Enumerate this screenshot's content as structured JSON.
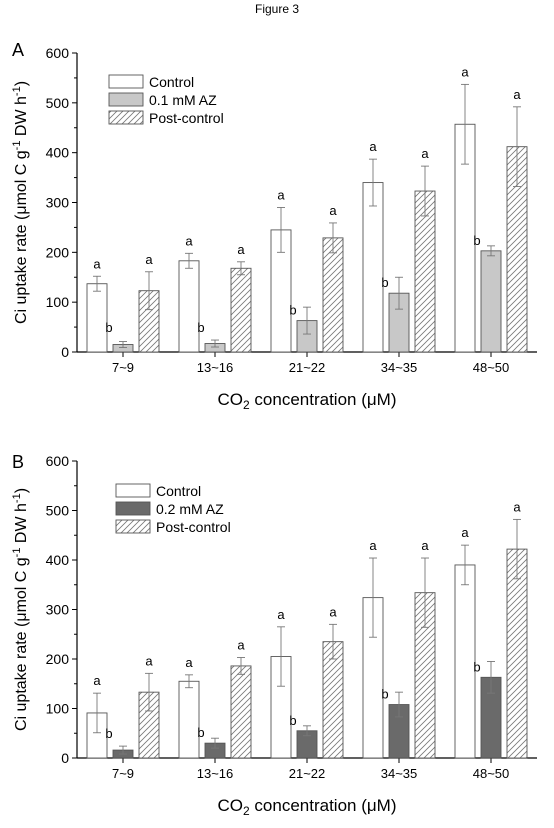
{
  "figure_title": "Figure 3",
  "chart_data": [
    {
      "type": "bar",
      "panel_label": "A",
      "categories": [
        "7~9",
        "13~16",
        "21~22",
        "34~35",
        "48~50"
      ],
      "xlabel_parts": [
        "CO",
        "2",
        " concentration (",
        "μ",
        "M)"
      ],
      "ylabel_parts": [
        "Ci uptake rate (",
        "μ",
        "mol C g",
        "-1",
        " DW h",
        "-1",
        ")"
      ],
      "ylim": [
        0,
        600
      ],
      "yticks": [
        "0",
        "100",
        "200",
        "300",
        "400",
        "500",
        "600"
      ],
      "legend_position": "top-left",
      "series": [
        {
          "name": "Control",
          "values": [
            137,
            183,
            245,
            340,
            457
          ],
          "errors": [
            15,
            15,
            45,
            47,
            80
          ],
          "letters": [
            "a",
            "a",
            "a",
            "a",
            "a"
          ],
          "fill": "#ffffff"
        },
        {
          "name": "0.1 mM AZ",
          "values": [
            15,
            17,
            63,
            118,
            203
          ],
          "errors": [
            6,
            7,
            27,
            32,
            10
          ],
          "letters": [
            "b",
            "b",
            "b",
            "b",
            "b"
          ],
          "fill": "#c8c8c8"
        },
        {
          "name": "Post-control",
          "values": [
            123,
            168,
            229,
            323,
            412
          ],
          "errors": [
            38,
            13,
            30,
            50,
            80
          ],
          "letters": [
            "a",
            "a",
            "a",
            "a",
            "a"
          ],
          "fill": "hatch"
        }
      ]
    },
    {
      "type": "bar",
      "panel_label": "B",
      "categories": [
        "7~9",
        "13~16",
        "21~22",
        "34~35",
        "48~50"
      ],
      "xlabel_parts": [
        "CO",
        "2",
        " concentration (",
        "μ",
        "M)"
      ],
      "ylabel_parts": [
        "Ci uptake rate (",
        "μ",
        "mol C g",
        "-1",
        " DW h",
        "-1",
        ")"
      ],
      "ylim": [
        0,
        600
      ],
      "yticks": [
        "0",
        "100",
        "200",
        "300",
        "400",
        "500",
        "600"
      ],
      "legend_position": "top-left",
      "series": [
        {
          "name": "Control",
          "values": [
            91,
            155,
            205,
            324,
            390
          ],
          "errors": [
            40,
            13,
            60,
            80,
            40
          ],
          "letters": [
            "a",
            "a",
            "a",
            "a",
            "a"
          ],
          "fill": "#ffffff"
        },
        {
          "name": "0.2 mM AZ",
          "values": [
            16,
            30,
            55,
            108,
            163
          ],
          "errors": [
            8,
            10,
            10,
            25,
            32
          ],
          "letters": [
            "b",
            "b",
            "b",
            "b",
            "b"
          ],
          "fill": "#6a6a6a"
        },
        {
          "name": "Post-control",
          "values": [
            133,
            186,
            235,
            334,
            422
          ],
          "errors": [
            38,
            17,
            35,
            70,
            60
          ],
          "letters": [
            "a",
            "a",
            "a",
            "a",
            "a"
          ],
          "fill": "hatch"
        }
      ]
    }
  ]
}
